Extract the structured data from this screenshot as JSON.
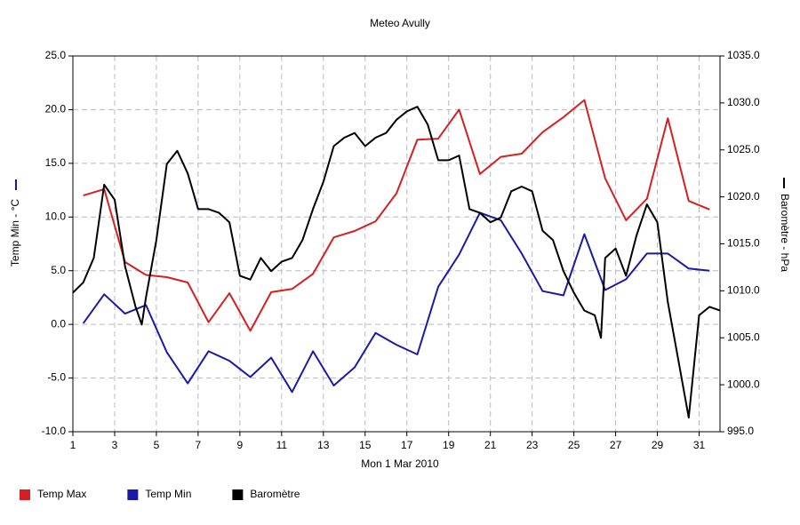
{
  "chart_data": {
    "type": "line",
    "title": "Meteo  Avully",
    "x_label": "Mon 1 Mar 2010",
    "y_label": "Temp Min - °C",
    "y2_label": "Baromètre - hPa",
    "xlim": [
      1,
      32
    ],
    "xticks": [
      1,
      3,
      5,
      7,
      9,
      11,
      13,
      15,
      17,
      19,
      21,
      23,
      25,
      27,
      29,
      31
    ],
    "ylim": [
      -10,
      25
    ],
    "yticks": [
      {
        "value": -10,
        "label": "-10.0"
      },
      {
        "value": -5,
        "label": "-5.0"
      },
      {
        "value": 0,
        "label": "0.0"
      },
      {
        "value": 5,
        "label": "5.0"
      },
      {
        "value": 10,
        "label": "10.0"
      },
      {
        "value": 15,
        "label": "15.0"
      },
      {
        "value": 20,
        "label": "20.0"
      },
      {
        "value": 25,
        "label": "25.0"
      }
    ],
    "y2lim": [
      995,
      1035
    ],
    "y2ticks": [
      {
        "value": 995,
        "label": "995.0"
      },
      {
        "value": 1000,
        "label": "1000.0"
      },
      {
        "value": 1005,
        "label": "1005.0"
      },
      {
        "value": 1010,
        "label": "1010.0"
      },
      {
        "value": 1015,
        "label": "1015.0"
      },
      {
        "value": 1020,
        "label": "1020.0"
      },
      {
        "value": 1025,
        "label": "1025.0"
      },
      {
        "value": 1030,
        "label": "1030.0"
      },
      {
        "value": 1035,
        "label": "1035.0"
      }
    ],
    "grid": true,
    "legend": "bottom",
    "series": [
      {
        "name": "Temp Max",
        "color": "#d42020",
        "axis": "y",
        "x": [
          1.5,
          2.5,
          3.5,
          4.5,
          5.5,
          6.5,
          7.5,
          8.5,
          9.5,
          10.5,
          11.5,
          12.5,
          13.5,
          14.5,
          15.5,
          16.5,
          17.5,
          18.5,
          19.5,
          20.5,
          21.5,
          22.5,
          23.5,
          24.5,
          25.5,
          26.5,
          27.5,
          28.5,
          29.5,
          30.5,
          31.5
        ],
        "values": [
          12.0,
          12.6,
          5.8,
          4.6,
          4.4,
          3.9,
          0.2,
          2.9,
          -0.6,
          3.0,
          3.3,
          4.7,
          8.1,
          8.7,
          9.6,
          12.2,
          17.2,
          17.3,
          20.0,
          14.0,
          15.6,
          15.9,
          17.9,
          19.3,
          20.9,
          13.6,
          9.7,
          11.7,
          19.2,
          11.5,
          10.7
        ]
      },
      {
        "name": "Temp Min",
        "color": "#1a1aa8",
        "axis": "y",
        "x": [
          1.5,
          2.5,
          3.5,
          4.5,
          5.5,
          6.5,
          7.5,
          8.5,
          9.5,
          10.5,
          11.5,
          12.5,
          13.5,
          14.5,
          15.5,
          16.5,
          17.5,
          18.5,
          19.5,
          20.5,
          21.5,
          22.5,
          23.5,
          24.5,
          25.5,
          26.5,
          27.5,
          28.5,
          29.5,
          30.5,
          31.5
        ],
        "values": [
          0.1,
          2.8,
          1.0,
          1.8,
          -2.6,
          -5.5,
          -2.5,
          -3.4,
          -4.9,
          -3.1,
          -6.3,
          -2.5,
          -5.7,
          -4.0,
          -0.8,
          -1.9,
          -2.8,
          3.5,
          6.5,
          10.4,
          9.7,
          6.6,
          3.1,
          2.7,
          8.4,
          3.2,
          4.2,
          6.6,
          6.6,
          5.2,
          5.0
        ]
      },
      {
        "name": "Baromètre",
        "color": "#000000",
        "axis": "y2",
        "x": [
          1,
          1.5,
          2,
          2.5,
          3,
          3.5,
          4,
          4.3,
          4.5,
          5,
          5.5,
          6,
          6.5,
          7,
          7.5,
          8,
          8.5,
          9,
          9.5,
          10,
          10.5,
          11,
          11.5,
          12,
          12.5,
          13,
          13.5,
          14,
          14.5,
          15,
          15.5,
          16,
          16.5,
          17,
          17.5,
          18,
          18.5,
          19,
          19.5,
          20,
          20.5,
          21,
          21.5,
          22,
          22.5,
          23,
          23.5,
          24,
          24.5,
          25,
          25.5,
          26,
          26.3,
          26.5,
          27,
          27.5,
          28,
          28.5,
          29,
          29.5,
          30,
          30.5,
          31,
          31.5,
          32
        ],
        "values": [
          1009.8,
          1010.9,
          1013.5,
          1021.3,
          1019.7,
          1012.6,
          1008.3,
          1006.4,
          1009.3,
          1015.4,
          1023.5,
          1024.9,
          1022.5,
          1018.7,
          1018.7,
          1018.3,
          1017.3,
          1011.6,
          1011.2,
          1013.5,
          1012.1,
          1013.1,
          1013.5,
          1015.4,
          1018.7,
          1021.6,
          1025.4,
          1026.3,
          1026.8,
          1025.4,
          1026.3,
          1026.8,
          1028.2,
          1029.1,
          1029.6,
          1027.7,
          1023.9,
          1023.9,
          1024.4,
          1018.7,
          1018.3,
          1017.3,
          1017.8,
          1020.6,
          1021.1,
          1020.6,
          1016.4,
          1015.4,
          1012.1,
          1009.8,
          1007.9,
          1007.4,
          1005.0,
          1013.5,
          1014.5,
          1011.6,
          1015.9,
          1019.2,
          1017.3,
          1008.8,
          1002.7,
          996.5,
          1007.4,
          1008.3,
          1007.9
        ]
      }
    ]
  }
}
